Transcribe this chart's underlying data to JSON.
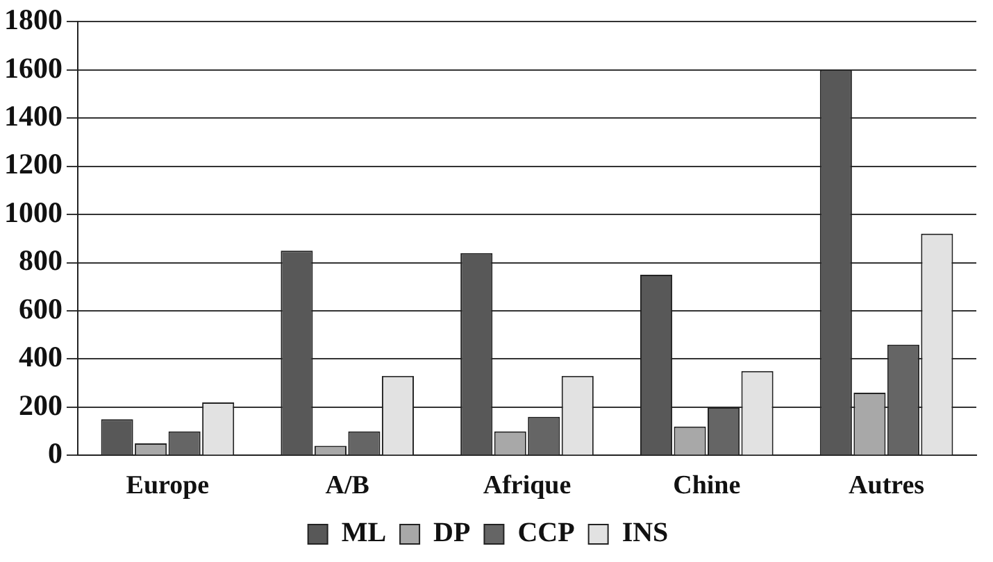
{
  "chart_data": {
    "type": "bar",
    "categories": [
      "Europe",
      "A/B",
      "Afrique",
      "Chine",
      "Autres"
    ],
    "series": [
      {
        "name": "ML",
        "color": "#585858",
        "values": [
          150,
          850,
          840,
          750,
          1600
        ]
      },
      {
        "name": "DP",
        "color": "#a8a8a8",
        "values": [
          50,
          40,
          100,
          120,
          260
        ]
      },
      {
        "name": "CCP",
        "color": "#656565",
        "values": [
          100,
          100,
          160,
          200,
          460
        ]
      },
      {
        "name": "INS",
        "color": "#e2e2e2",
        "values": [
          220,
          330,
          330,
          350,
          920
        ]
      }
    ],
    "ylim": [
      0,
      1800
    ],
    "yticks": [
      0,
      200,
      400,
      600,
      800,
      1000,
      1200,
      1400,
      1600,
      1800
    ],
    "grid": "y",
    "legend": "bottom"
  }
}
